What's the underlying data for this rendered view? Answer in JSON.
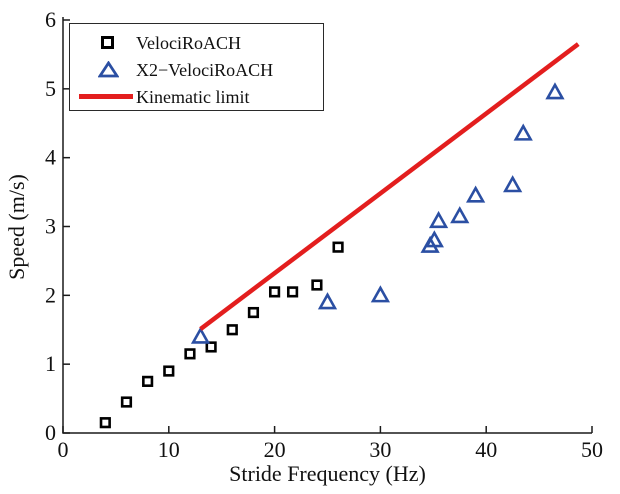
{
  "chart_data": {
    "type": "scatter",
    "xlabel": "Stride Frequency (Hz)",
    "ylabel": "Speed (m/s)",
    "xlim": [
      0,
      50
    ],
    "ylim": [
      0,
      6
    ],
    "xticks": [
      0,
      10,
      20,
      30,
      40,
      50
    ],
    "yticks": [
      0,
      1,
      2,
      3,
      4,
      5,
      6
    ],
    "grid": false,
    "legend_position": "top-left",
    "axis_color": "#1a1a1a",
    "series": [
      {
        "name": "VelociRoACH",
        "type": "scatter",
        "marker": "open-square",
        "color": "#000000",
        "x": [
          4,
          6,
          8,
          10,
          12,
          14,
          16,
          18,
          20,
          21.7,
          24,
          26
        ],
        "y": [
          0.15,
          0.45,
          0.75,
          0.9,
          1.15,
          1.25,
          1.5,
          1.75,
          2.05,
          2.05,
          2.15,
          2.7
        ]
      },
      {
        "name": "X2−VelociRoACH",
        "type": "scatter",
        "marker": "open-triangle",
        "color": "#2b4fa3",
        "x": [
          13,
          25,
          30,
          34.7,
          35.1,
          35.5,
          37.5,
          39,
          42.5,
          43.5,
          46.5
        ],
        "y": [
          1.4,
          1.9,
          2.0,
          2.72,
          2.8,
          3.08,
          3.15,
          3.45,
          3.6,
          4.35,
          4.95
        ]
      },
      {
        "name": "Kinematic limit",
        "type": "line",
        "marker": "none",
        "color": "#e31e1e",
        "line_width": 4.5,
        "x": [
          13,
          48.7
        ],
        "y": [
          1.51,
          5.65
        ]
      }
    ]
  }
}
